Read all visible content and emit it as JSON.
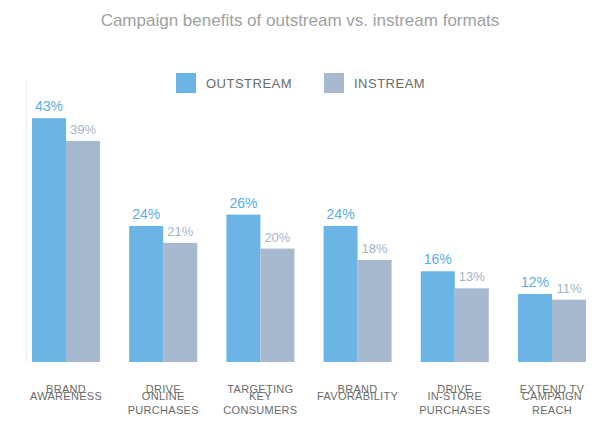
{
  "chart_data": {
    "type": "bar",
    "title": "Campaign benefits of outstream vs. instream formats",
    "categories": [
      "BRAND\nAWARENESS",
      "DRIVE\nONLINE\nPURCHASES",
      "TARGETING\nKEY\nCONSUMERS",
      "BRAND\nFAVORABILITY",
      "DRIVE\nIN-STORE\nPURCHASES",
      "EXTEND TV\nCAMPAIGN\nREACH"
    ],
    "series": [
      {
        "name": "OUTSTREAM",
        "color": "#6bb5e6",
        "values": [
          43,
          24,
          26,
          24,
          16,
          12
        ],
        "value_labels": [
          "43%",
          "24%",
          "26%",
          "24%",
          "16%",
          "12%"
        ]
      },
      {
        "name": "INSTREAM",
        "color": "#a7b9cf",
        "values": [
          39,
          21,
          20,
          18,
          13,
          11
        ],
        "value_labels": [
          "39%",
          "21%",
          "20%",
          "18%",
          "13%",
          "11%"
        ]
      }
    ],
    "ylim": [
      0,
      50
    ],
    "grid": false,
    "legend": "top",
    "data_labels": true,
    "tick_labels": "x"
  }
}
